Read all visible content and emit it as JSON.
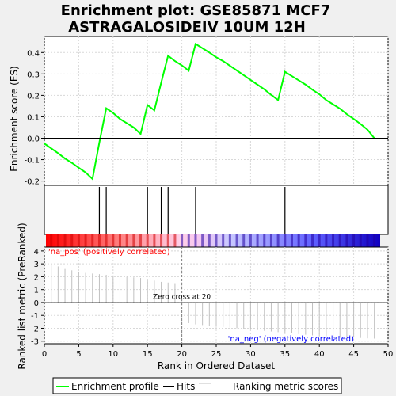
{
  "chart_data": {
    "type": "line",
    "title_line1": "Enrichment plot: GSE85871 MCF7",
    "title_line2": "ASTRAGALOSIDEIV 10UM 12H",
    "es_panel": {
      "ylabel": "Enrichment score (ES)",
      "ylim": [
        -0.22,
        0.475
      ],
      "yticks": [
        -0.2,
        -0.1,
        0.0,
        0.1,
        0.2,
        0.3,
        0.4
      ],
      "ytick_labels": [
        "-0.2",
        "-0.1",
        "0.0",
        "0.1",
        "0.2",
        "0.3",
        "0.4"
      ],
      "series": [
        {
          "name": "Enrichment profile",
          "color": "#00ff00",
          "x": [
            0,
            2,
            3,
            4,
            5,
            6,
            7,
            8,
            9,
            10,
            11,
            12,
            13,
            14,
            15,
            16,
            17,
            18,
            19,
            20,
            21,
            22,
            23,
            24,
            25,
            26,
            27,
            28,
            29,
            30,
            31,
            32,
            33,
            34,
            35,
            36,
            37,
            38,
            39,
            40,
            41,
            42,
            43,
            44,
            45,
            46,
            47,
            48
          ],
          "y": [
            -0.025,
            -0.07,
            -0.095,
            -0.115,
            -0.138,
            -0.16,
            -0.19,
            -0.02,
            0.14,
            0.118,
            0.09,
            0.07,
            0.05,
            0.02,
            0.155,
            0.13,
            0.26,
            0.385,
            0.36,
            0.34,
            0.315,
            0.44,
            0.42,
            0.4,
            0.378,
            0.36,
            0.338,
            0.316,
            0.294,
            0.272,
            0.25,
            0.228,
            0.202,
            0.178,
            0.31,
            0.29,
            0.27,
            0.25,
            0.226,
            0.205,
            0.178,
            0.158,
            0.138,
            0.112,
            0.09,
            0.066,
            0.04,
            0.0
          ]
        }
      ]
    },
    "hits": {
      "name": "Hits",
      "x": [
        8,
        9,
        15,
        17,
        18,
        22,
        35
      ]
    },
    "rank_panel": {
      "ylabel": "Ranked list metric (PreRanked)",
      "ylim": [
        -3.2,
        4.3
      ],
      "yticks": [
        -3,
        -2,
        -1,
        0,
        1,
        2,
        3,
        4
      ],
      "ytick_labels": [
        "-3",
        "-2",
        "-1",
        "0",
        "1",
        "2",
        "3",
        "4"
      ],
      "xlabel": "Rank in Ordered Dataset",
      "xlim": [
        0,
        50
      ],
      "xticks": [
        0,
        5,
        10,
        15,
        20,
        25,
        30,
        35,
        40,
        45,
        50
      ],
      "xtick_labels": [
        "0",
        "5",
        "10",
        "15",
        "20",
        "25",
        "30",
        "35",
        "40",
        "45",
        "50"
      ],
      "series": [
        {
          "name": "Ranking metric scores",
          "color": "#c0c0c0",
          "x": [
            1,
            2,
            3,
            4,
            5,
            6,
            7,
            8,
            9,
            10,
            11,
            12,
            13,
            14,
            15,
            16,
            17,
            18,
            19,
            20,
            21,
            22,
            23,
            24,
            25,
            26,
            27,
            28,
            29,
            30,
            31,
            32,
            33,
            34,
            35,
            36,
            37,
            38,
            39,
            40,
            41,
            42,
            43,
            44,
            45,
            46,
            47,
            48
          ],
          "values": [
            3.0,
            2.8,
            2.6,
            2.5,
            2.4,
            2.3,
            2.25,
            2.2,
            2.15,
            2.1,
            2.05,
            2.0,
            1.95,
            1.9,
            1.8,
            1.7,
            1.6,
            1.55,
            1.5,
            -0.2,
            -1.6,
            -1.7,
            -1.75,
            -1.8,
            -1.85,
            -1.9,
            -1.95,
            -2.0,
            -2.05,
            -2.1,
            -2.15,
            -2.2,
            -2.25,
            -2.3,
            -2.35,
            -2.4,
            -2.45,
            -2.5,
            -2.55,
            -2.6,
            -2.62,
            -2.65,
            -2.68,
            -2.7,
            -2.72,
            -2.75,
            -2.78,
            -2.8
          ]
        }
      ],
      "zero_cross_label": "Zero cross at 20",
      "zero_cross_x": 20,
      "pos_label": "'na_pos' (positively correlated)",
      "neg_label": "'na_neg' (negatively correlated)",
      "pos_color": "#ff0000",
      "neg_color": "#0000ff"
    },
    "legend": {
      "placement": "bottom",
      "entries": [
        {
          "label": "Enrichment profile",
          "color": "#00ff00"
        },
        {
          "label": "Hits",
          "color": "#000000"
        },
        {
          "label": "Ranking metric scores",
          "color": "#c0c0c0"
        }
      ]
    }
  }
}
